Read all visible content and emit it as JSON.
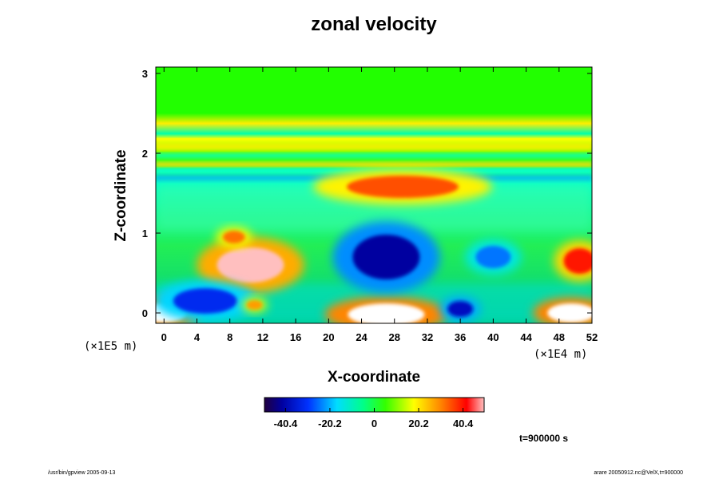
{
  "chart_data": {
    "type": "heatmap",
    "title": "zonal velocity",
    "xlabel": "X-coordinate",
    "ylabel": "Z-coordinate",
    "x_unit": "(×1E4 m)",
    "z_unit": "(×1E5 m)",
    "x_ticks": [
      "0",
      "4",
      "8",
      "12",
      "16",
      "20",
      "24",
      "28",
      "32",
      "36",
      "40",
      "44",
      "48",
      "52"
    ],
    "z_ticks": [
      "0",
      "1",
      "2",
      "3"
    ],
    "xlim": [
      -1,
      52
    ],
    "zlim": [
      -0.13,
      3.08
    ],
    "colorbar_ticks": [
      "-40.4",
      "-20.2",
      "0",
      "20.2",
      "40.4"
    ],
    "colorbar_range": [
      -50,
      50
    ],
    "time_label": "t=900000 s",
    "features": [
      {
        "x": 0,
        "z": 0.0,
        "value": 55
      },
      {
        "x": 49.5,
        "z": 0.0,
        "value": 55
      },
      {
        "x": 27,
        "z": -0.02,
        "value": 55
      },
      {
        "x": 10.5,
        "z": 0.6,
        "value": 48
      },
      {
        "x": 27,
        "z": 0.7,
        "value": -42
      },
      {
        "x": 40,
        "z": 0.7,
        "value": -25
      },
      {
        "x": 29,
        "z": 1.58,
        "value": 35
      },
      {
        "x": 50.5,
        "z": 0.65,
        "value": 40
      },
      {
        "x": 8.5,
        "z": 0.95,
        "value": 32
      },
      {
        "x": 5,
        "z": 0.15,
        "value": -32
      },
      {
        "x": 36,
        "z": 0.05,
        "value": -38
      },
      {
        "x": 11,
        "z": 0.1,
        "value": 28
      }
    ],
    "grid": false
  },
  "footer": {
    "left_note": "/usr/bin/gpview 2005-09-13",
    "right_note": "arare 20050912.nc@VelX,t=900000"
  },
  "colors": {
    "background": "#00ff00",
    "positive": "#ff0000",
    "negative": "#0000cc"
  }
}
